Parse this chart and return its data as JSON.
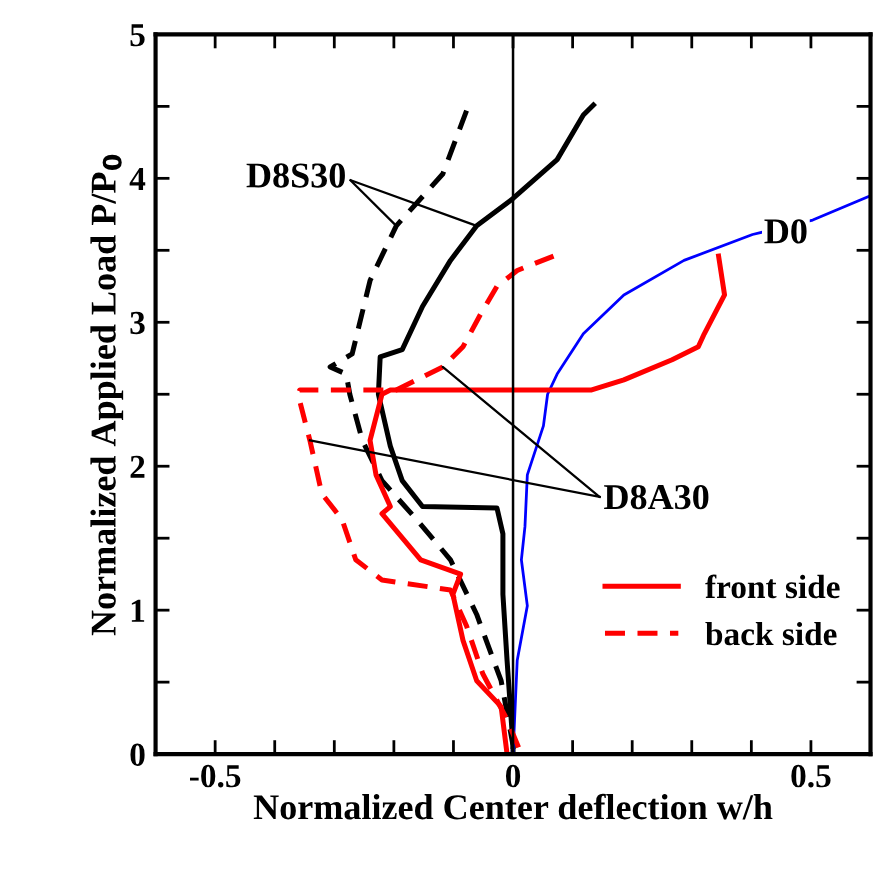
{
  "chart_data": {
    "type": "line",
    "xlabel": "Normalized Center deflection w/h",
    "ylabel": "Normalized Applied Load P/P$_{0}$",
    "xlim": [
      -0.6,
      0.6
    ],
    "ylim": [
      0,
      5
    ],
    "xticks": [
      {
        "value": -0.6,
        "label": null
      },
      -0.5,
      {
        "value": -0.4,
        "label": null
      },
      {
        "value": -0.3,
        "label": null
      },
      {
        "value": -0.2,
        "label": null
      },
      {
        "value": -0.1,
        "label": null
      },
      0,
      {
        "value": 0.1,
        "label": null
      },
      {
        "value": 0.2,
        "label": null
      },
      {
        "value": 0.3,
        "label": null
      },
      {
        "value": 0.4,
        "label": null
      },
      0.5,
      {
        "value": 0.6,
        "label": null
      }
    ],
    "yticks": [
      0,
      {
        "value": 0.5,
        "label": null
      },
      1,
      {
        "value": 1.5,
        "label": null
      },
      2,
      {
        "value": 2.5,
        "label": null
      },
      3,
      {
        "value": 3.5,
        "label": null
      },
      4,
      {
        "value": 4.5,
        "label": null
      },
      5
    ],
    "grid": false,
    "legend": "bottom right",
    "marker": "none",
    "ref_lines": [
      {
        "axis": "x",
        "value": 0,
        "color": "#000000"
      }
    ],
    "series": [
      {
        "color": "#000000",
        "line_style": "solid",
        "x": [
          0.135,
          0.118,
          0.074,
          0,
          -0.061,
          -0.105,
          -0.152,
          -0.186,
          -0.223,
          -0.226,
          -0.206,
          -0.186,
          -0.152,
          -0.027,
          -0.017,
          -0.017,
          -0.01,
          0,
          0
        ],
        "values": [
          4.51,
          4.44,
          4.13,
          3.86,
          3.67,
          3.43,
          3.11,
          2.81,
          2.76,
          2.5,
          2.14,
          1.9,
          1.72,
          1.71,
          1.53,
          1.11,
          0.65,
          0.06,
          0
        ]
      },
      {
        "color": "#000000",
        "line_style": "dashed",
        "x": [
          -0.078,
          -0.118,
          -0.196,
          -0.24,
          -0.27,
          -0.307,
          -0.28,
          -0.274,
          -0.253,
          -0.22,
          -0.162,
          -0.105,
          -0.061,
          -0.02,
          0,
          0
        ],
        "values": [
          4.47,
          4.03,
          3.67,
          3.29,
          2.78,
          2.69,
          2.64,
          2.5,
          2.18,
          1.9,
          1.63,
          1.35,
          0.97,
          0.51,
          0.06,
          0
        ]
      },
      {
        "color": "#0000ff",
        "line_style": "solid",
        "x": [
          0.6,
          0.503,
          0.402,
          0.287,
          0.186,
          0.118,
          0.074,
          0.058,
          0.051,
          0.024,
          0.02,
          0.014,
          0.024,
          0.007,
          0
        ],
        "values": [
          3.88,
          3.71,
          3.61,
          3.43,
          3.19,
          2.92,
          2.64,
          2.5,
          2.28,
          1.94,
          1.58,
          1.35,
          1.03,
          0.65,
          0
        ]
      },
      {
        "name": "front side",
        "color": "#ff0000",
        "line_style": "solid",
        "x": [
          0.345,
          0.355,
          0.321,
          0.311,
          0.267,
          0.186,
          0.132,
          -0.206,
          -0.22,
          -0.24,
          -0.23,
          -0.206,
          -0.22,
          -0.155,
          -0.088,
          -0.101,
          -0.084,
          -0.061,
          -0.02,
          -0.01
        ],
        "values": [
          3.46,
          3.19,
          2.92,
          2.83,
          2.74,
          2.6,
          2.53,
          2.53,
          2.5,
          2.18,
          1.94,
          1.72,
          1.67,
          1.35,
          1.25,
          1.11,
          0.79,
          0.51,
          0.33,
          0
        ]
      },
      {
        "name": "back side",
        "color": "#ff0000",
        "line_style": "dashed",
        "x": [
          0.068,
          0.007,
          -0.027,
          -0.054,
          -0.084,
          -0.118,
          -0.196,
          -0.358,
          -0.361,
          -0.341,
          -0.321,
          -0.287,
          -0.264,
          -0.22,
          -0.105,
          -0.078,
          -0.051,
          -0.01,
          0.014
        ],
        "values": [
          3.46,
          3.36,
          3.25,
          3.06,
          2.83,
          2.69,
          2.53,
          2.53,
          2.5,
          2.18,
          1.81,
          1.63,
          1.35,
          1.21,
          1.14,
          0.89,
          0.56,
          0.24,
          0
        ]
      }
    ],
    "annotations": [
      {
        "text": "D8S30",
        "x": -0.061,
        "y": 3.67
      },
      {
        "text": "D0",
        "x": 0.402,
        "y": 3.61
      },
      {
        "text": "D8A30",
        "x": -0.118,
        "y": 2.69
      }
    ]
  }
}
